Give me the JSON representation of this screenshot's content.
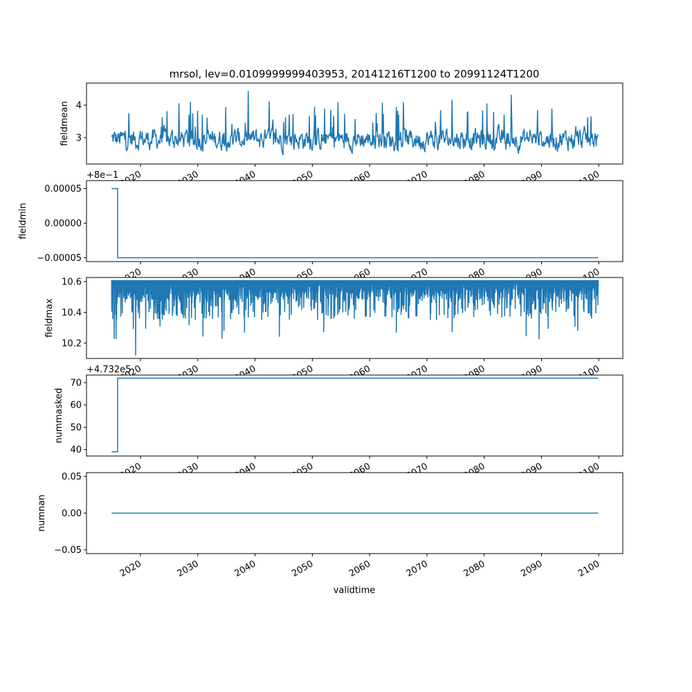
{
  "chart_data": {
    "type": "line",
    "title": "mrsol, lev=0.0109999999403953, 20141216T1200 to 20991124T1200",
    "xlabel": "validtime",
    "x_ticks": [
      "2020",
      "2030",
      "2040",
      "2050",
      "2060",
      "2070",
      "2080",
      "2090",
      "2100"
    ],
    "x_tick_values": [
      2020,
      2030,
      2040,
      2050,
      2060,
      2070,
      2080,
      2090,
      2100
    ],
    "xlim": [
      2010.57,
      2104.2
    ],
    "x_start": 2014.96,
    "x_end": 2099.9,
    "color": "#1f77b4",
    "panels": [
      {
        "ylabel": "fieldmean",
        "yticks": [
          "3",
          "4"
        ],
        "ytick_values": [
          3,
          4
        ],
        "ylim": [
          2.19,
          4.68
        ],
        "offset_text": "",
        "kind": "noise",
        "base": 2.95,
        "low": 2.3,
        "high": 4.57
      },
      {
        "ylabel": "fieldmin",
        "yticks": [
          "−0.00005",
          "0.00000",
          "0.00005"
        ],
        "ytick_values": [
          -5e-05,
          0,
          5e-05
        ],
        "ylim": [
          -5.55e-05,
          6.15e-05
        ],
        "offset_text": "+8e−1",
        "kind": "step",
        "before": 5e-05,
        "after": -5e-05,
        "step_x": 2016.0
      },
      {
        "ylabel": "fieldmax",
        "yticks": [
          "10.2",
          "10.4",
          "10.6"
        ],
        "ytick_values": [
          10.2,
          10.4,
          10.6
        ],
        "ylim": [
          10.1,
          10.627
        ],
        "offset_text": "",
        "kind": "dips",
        "top": 10.61,
        "low": 10.12
      },
      {
        "ylabel": "nummasked",
        "yticks": [
          "40",
          "50",
          "60",
          "70"
        ],
        "ytick_values": [
          40,
          50,
          60,
          70
        ],
        "ylim": [
          37.1,
          73.4
        ],
        "offset_text": "+4.732e5",
        "kind": "step",
        "before": 39,
        "after": 72,
        "step_x": 2016.0
      },
      {
        "ylabel": "numnan",
        "yticks": [
          "−0.05",
          "0.00",
          "0.05"
        ],
        "ytick_values": [
          -0.05,
          0,
          0.05
        ],
        "ylim": [
          -0.055,
          0.055
        ],
        "offset_text": "",
        "kind": "const",
        "value": 0
      }
    ]
  }
}
